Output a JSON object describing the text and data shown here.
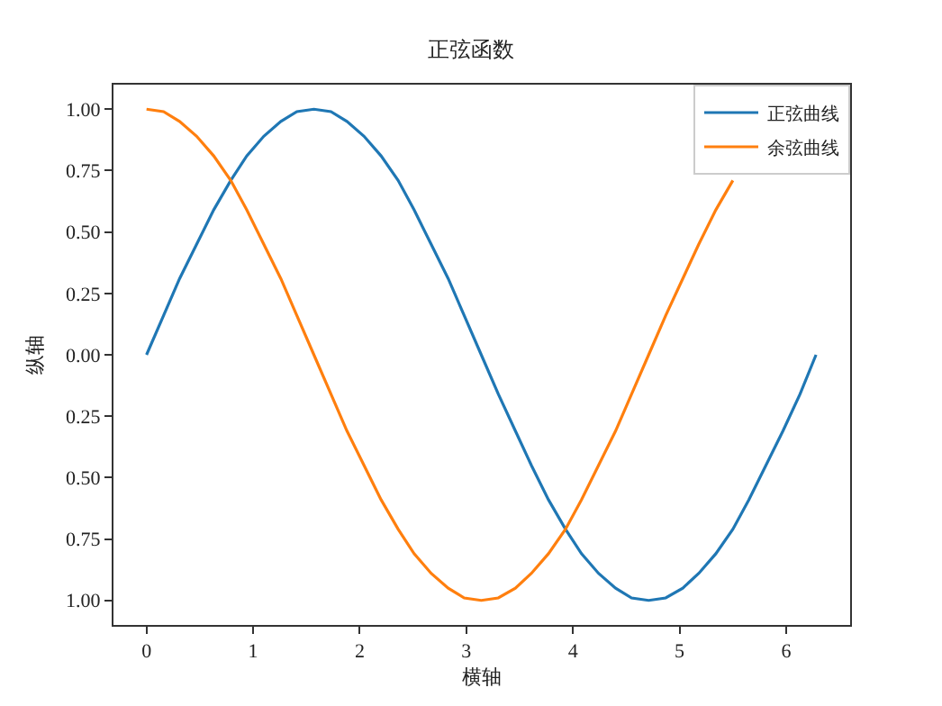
{
  "chart_data": {
    "type": "line",
    "title": "正弦函数",
    "xlabel": "横轴",
    "ylabel": "纵轴",
    "x": [
      0,
      0.16,
      0.31,
      0.47,
      0.63,
      0.79,
      0.94,
      1.1,
      1.26,
      1.41,
      1.57,
      1.73,
      1.88,
      2.04,
      2.2,
      2.36,
      2.51,
      2.67,
      2.83,
      2.98,
      3.14,
      3.3,
      3.46,
      3.61,
      3.77,
      3.93,
      4.08,
      4.24,
      4.4,
      4.55,
      4.71,
      4.87,
      5.03,
      5.18,
      5.34,
      5.5,
      5.65,
      5.81,
      5.97,
      6.13,
      6.28
    ],
    "series": [
      {
        "name": "正弦曲线",
        "color": "#1f77b4",
        "values": [
          0,
          0.16,
          0.31,
          0.45,
          0.59,
          0.71,
          0.81,
          0.89,
          0.95,
          0.99,
          1,
          0.99,
          0.95,
          0.89,
          0.81,
          0.71,
          0.59,
          0.45,
          0.31,
          0.16,
          0,
          -0.16,
          -0.31,
          -0.45,
          -0.59,
          -0.71,
          -0.81,
          -0.89,
          -0.95,
          -0.99,
          -1,
          -0.99,
          -0.95,
          -0.89,
          -0.81,
          -0.71,
          -0.59,
          -0.45,
          -0.31,
          -0.16,
          0
        ]
      },
      {
        "name": "余弦曲线",
        "color": "#ff7f0e",
        "values": [
          1,
          0.99,
          0.95,
          0.89,
          0.81,
          0.71,
          0.59,
          0.45,
          0.31,
          0.16,
          0,
          -0.16,
          -0.31,
          -0.45,
          -0.59,
          -0.71,
          -0.81,
          -0.89,
          -0.95,
          -0.99,
          -1,
          -0.99,
          -0.95,
          -0.89,
          -0.81,
          -0.71,
          -0.59,
          -0.45,
          -0.31,
          -0.16,
          0,
          0.16,
          0.31,
          0.45,
          0.59,
          0.71,
          null,
          null,
          null,
          null,
          null
        ]
      }
    ],
    "xlim": [
      -0.31,
      6.6
    ],
    "xticks": [
      0,
      1,
      2,
      3,
      4,
      5,
      6
    ],
    "ylim": [
      -1.1,
      1.1
    ],
    "yticks": [
      {
        "value": -1,
        "label": "1.00"
      },
      {
        "value": -0.75,
        "label": "0.75"
      },
      {
        "value": -0.5,
        "label": "0.50"
      },
      {
        "value": -0.25,
        "label": "0.25"
      },
      {
        "value": 0,
        "label": "0.00"
      },
      {
        "value": 0.25,
        "label": "0.25"
      },
      {
        "value": 0.5,
        "label": "0.50"
      },
      {
        "value": 0.75,
        "label": "0.75"
      },
      {
        "value": 1,
        "label": "1.00"
      }
    ],
    "legend": "top right",
    "marker": "none",
    "line_style": "solid"
  }
}
